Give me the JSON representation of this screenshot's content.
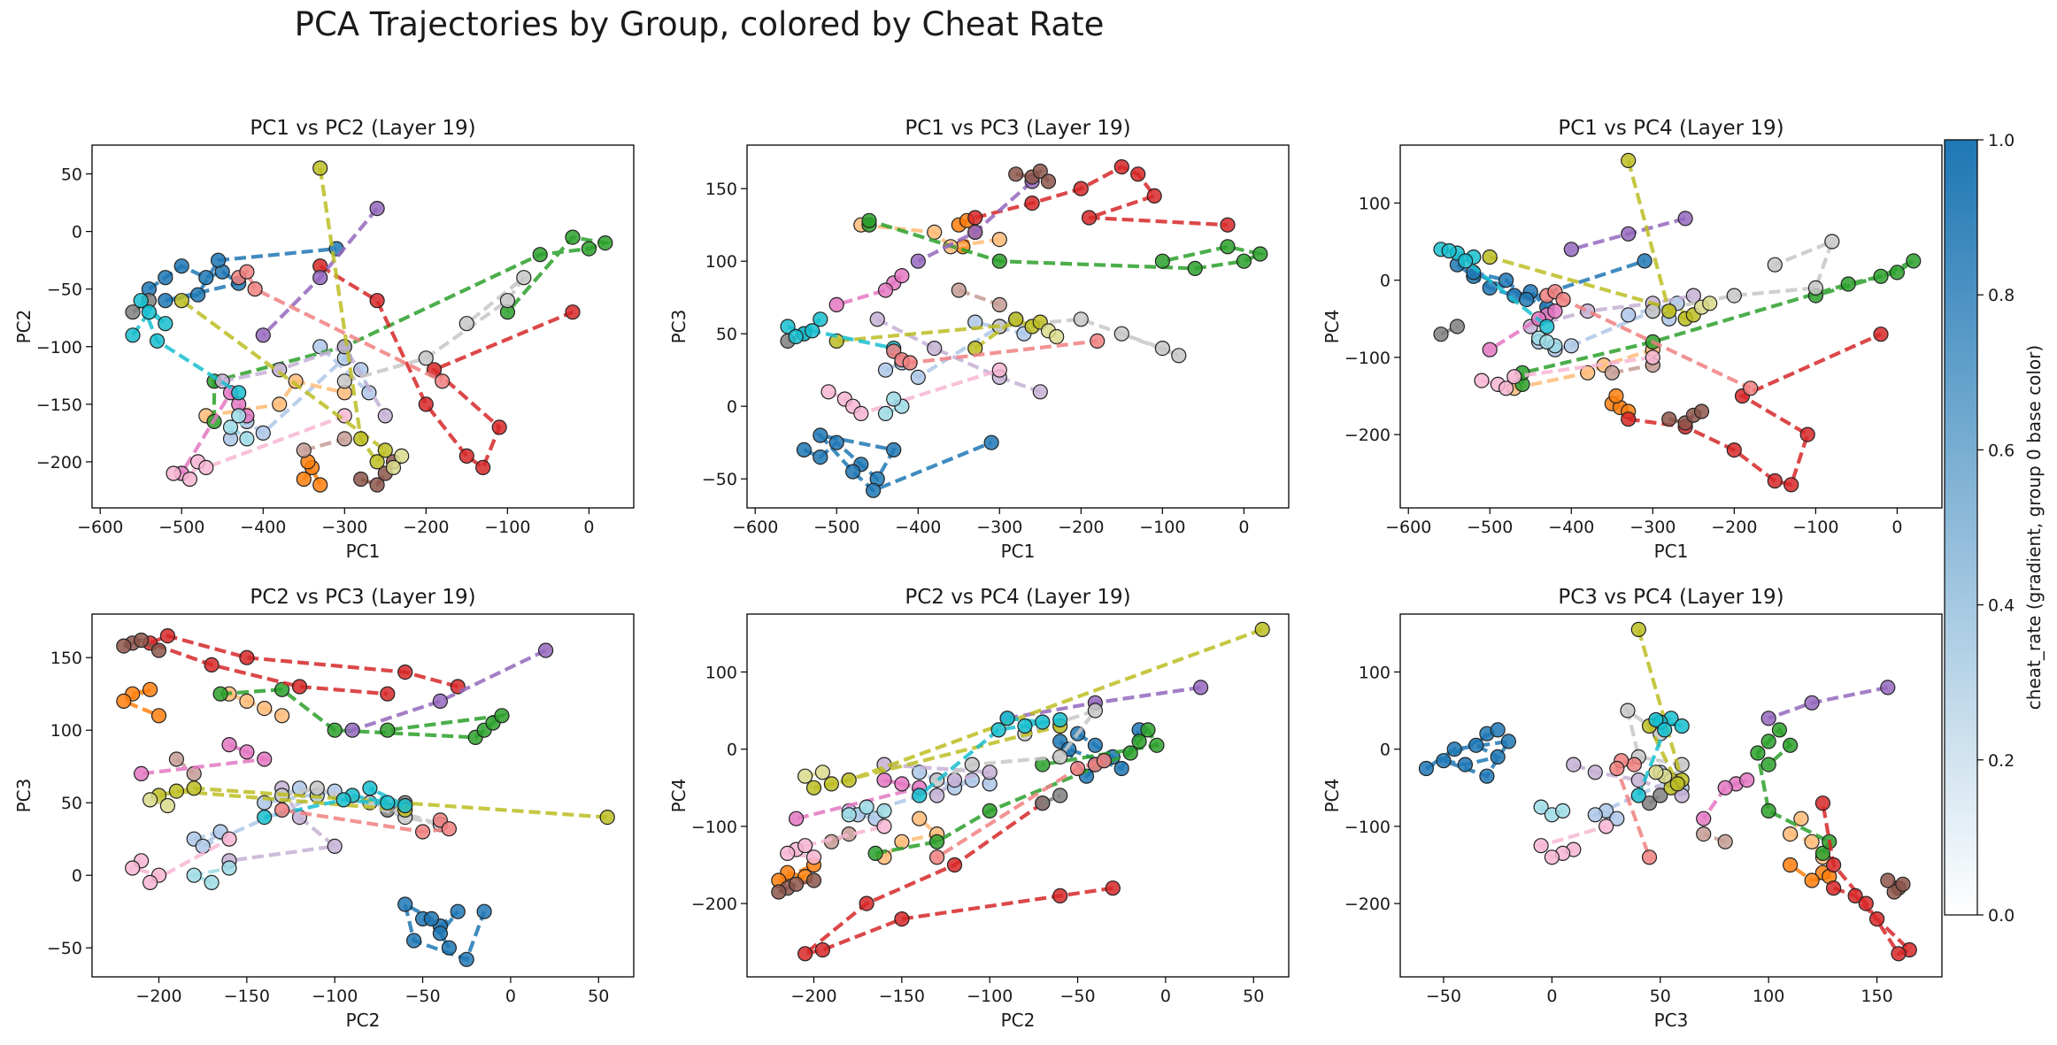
{
  "title": "PCA Trajectories by Group, colored by Cheat Rate",
  "colorbar": {
    "label": "cheat_rate (gradient, group 0 base color)",
    "ticks": [
      "0.0",
      "0.2",
      "0.4",
      "0.6",
      "0.8",
      "1.0"
    ],
    "range": [
      0,
      1
    ],
    "color_low": "#ffffff",
    "color_high": "#1f77b4"
  },
  "chart_data": [
    {
      "type": "scatter",
      "title": "PC1 vs PC2 (Layer 19)",
      "xlabel": "PC1",
      "ylabel": "PC2",
      "xlim": [
        -610,
        55
      ],
      "ylim": [
        -240,
        75
      ],
      "xticks": [
        -600,
        -500,
        -400,
        -300,
        -200,
        -100,
        0
      ],
      "yticks": [
        -200,
        -150,
        -100,
        -50,
        0,
        50
      ],
      "dims": [
        0,
        1
      ]
    },
    {
      "type": "scatter",
      "title": "PC1 vs PC3 (Layer 19)",
      "xlabel": "PC1",
      "ylabel": "PC3",
      "xlim": [
        -610,
        55
      ],
      "ylim": [
        -70,
        180
      ],
      "xticks": [
        -600,
        -500,
        -400,
        -300,
        -200,
        -100,
        0
      ],
      "yticks": [
        -50,
        0,
        50,
        100,
        150
      ],
      "dims": [
        0,
        2
      ]
    },
    {
      "type": "scatter",
      "title": "PC1 vs PC4 (Layer 19)",
      "xlabel": "PC1",
      "ylabel": "PC4",
      "xlim": [
        -610,
        55
      ],
      "ylim": [
        -295,
        175
      ],
      "xticks": [
        -600,
        -500,
        -400,
        -300,
        -200,
        -100,
        0
      ],
      "yticks": [
        -200,
        -100,
        0,
        100
      ],
      "dims": [
        0,
        3
      ]
    },
    {
      "type": "scatter",
      "title": "PC2 vs PC3 (Layer 19)",
      "xlabel": "PC2",
      "ylabel": "PC3",
      "xlim": [
        -238,
        70
      ],
      "ylim": [
        -70,
        180
      ],
      "xticks": [
        -200,
        -150,
        -100,
        -50,
        0,
        50
      ],
      "yticks": [
        -50,
        0,
        50,
        100,
        150
      ],
      "dims": [
        1,
        2
      ]
    },
    {
      "type": "scatter",
      "title": "PC2 vs PC4 (Layer 19)",
      "xlabel": "PC2",
      "ylabel": "PC4",
      "xlim": [
        -238,
        70
      ],
      "ylim": [
        -295,
        175
      ],
      "xticks": [
        -200,
        -150,
        -100,
        -50,
        0,
        50
      ],
      "yticks": [
        -200,
        -100,
        0,
        100
      ],
      "dims": [
        1,
        3
      ]
    },
    {
      "type": "scatter",
      "title": "PC3 vs PC4 (Layer 19)",
      "xlabel": "PC3",
      "ylabel": "PC4",
      "xlim": [
        -70,
        180
      ],
      "ylim": [
        -295,
        175
      ],
      "xticks": [
        -50,
        0,
        50,
        100,
        150
      ],
      "yticks": [
        -200,
        -100,
        0,
        100
      ],
      "dims": [
        2,
        3
      ]
    }
  ],
  "groups": [
    {
      "color": "#1f77b4",
      "points": [
        [
          -540,
          -50,
          -30,
          20
        ],
        [
          -520,
          -40,
          -35,
          5
        ],
        [
          -500,
          -30,
          -25,
          -10
        ],
        [
          -470,
          -40,
          -40,
          -20
        ],
        [
          -450,
          -35,
          -50,
          -15
        ],
        [
          -430,
          -45,
          -30,
          -35
        ],
        [
          -520,
          -60,
          -20,
          10
        ],
        [
          -480,
          -55,
          -45,
          0
        ],
        [
          -455,
          -25,
          -58,
          -25
        ],
        [
          -310,
          -15,
          -25,
          25
        ]
      ]
    },
    {
      "color": "#aec7e8",
      "points": [
        [
          -440,
          -180,
          25,
          -80
        ],
        [
          -420,
          -165,
          30,
          -90
        ],
        [
          -400,
          -175,
          20,
          -85
        ],
        [
          -300,
          -110,
          55,
          -40
        ],
        [
          -280,
          -120,
          60,
          -50
        ],
        [
          -270,
          -140,
          50,
          -30
        ],
        [
          -330,
          -100,
          58,
          -45
        ]
      ]
    },
    {
      "color": "#ff7f0e",
      "points": [
        [
          -350,
          -215,
          125,
          -160
        ],
        [
          -340,
          -205,
          128,
          -165
        ],
        [
          -330,
          -220,
          120,
          -170
        ],
        [
          -345,
          -200,
          110,
          -150
        ]
      ]
    },
    {
      "color": "#ffbb78",
      "points": [
        [
          -470,
          -160,
          125,
          -140
        ],
        [
          -380,
          -150,
          120,
          -120
        ],
        [
          -360,
          -130,
          110,
          -110
        ],
        [
          -300,
          -140,
          115,
          -90
        ]
      ]
    },
    {
      "color": "#2ca02c",
      "points": [
        [
          -460,
          -165,
          125,
          -135
        ],
        [
          -460,
          -130,
          128,
          -120
        ],
        [
          -300,
          -100,
          100,
          -80
        ],
        [
          -60,
          -20,
          95,
          -5
        ],
        [
          0,
          -15,
          100,
          10
        ],
        [
          20,
          -10,
          105,
          25
        ],
        [
          -20,
          -5,
          110,
          5
        ],
        [
          -100,
          -70,
          100,
          -20
        ]
      ]
    },
    {
      "color": "#d62728",
      "points": [
        [
          -330,
          -30,
          130,
          -180
        ],
        [
          -260,
          -60,
          140,
          -190
        ],
        [
          -200,
          -150,
          150,
          -220
        ],
        [
          -150,
          -195,
          165,
          -260
        ],
        [
          -130,
          -205,
          160,
          -265
        ],
        [
          -110,
          -170,
          145,
          -200
        ],
        [
          -190,
          -120,
          130,
          -150
        ],
        [
          -20,
          -70,
          125,
          -70
        ]
      ]
    },
    {
      "color": "#9467bd",
      "points": [
        [
          -260,
          20,
          155,
          80
        ],
        [
          -330,
          -40,
          120,
          60
        ],
        [
          -400,
          -90,
          100,
          40
        ]
      ]
    },
    {
      "color": "#c5b0d5",
      "points": [
        [
          -450,
          -130,
          60,
          -60
        ],
        [
          -380,
          -120,
          40,
          -40
        ],
        [
          -300,
          -100,
          20,
          -30
        ],
        [
          -250,
          -160,
          10,
          -20
        ]
      ]
    },
    {
      "color": "#8c564b",
      "points": [
        [
          -280,
          -215,
          160,
          -180
        ],
        [
          -260,
          -220,
          158,
          -185
        ],
        [
          -250,
          -210,
          162,
          -175
        ],
        [
          -240,
          -200,
          155,
          -170
        ]
      ]
    },
    {
      "color": "#c49c94",
      "points": [
        [
          -350,
          -190,
          80,
          -120
        ],
        [
          -300,
          -180,
          70,
          -110
        ]
      ]
    },
    {
      "color": "#e377c2",
      "points": [
        [
          -430,
          -150,
          85,
          -45
        ],
        [
          -420,
          -160,
          90,
          -40
        ],
        [
          -440,
          -140,
          80,
          -50
        ],
        [
          -500,
          -210,
          70,
          -90
        ]
      ]
    },
    {
      "color": "#f7b6d2",
      "points": [
        [
          -510,
          -210,
          10,
          -130
        ],
        [
          -490,
          -215,
          5,
          -135
        ],
        [
          -480,
          -200,
          0,
          -140
        ],
        [
          -470,
          -205,
          -5,
          -125
        ],
        [
          -300,
          -160,
          25,
          -100
        ]
      ]
    },
    {
      "color": "#7f7f7f",
      "points": [
        [
          -560,
          -70,
          45,
          -70
        ],
        [
          -540,
          -60,
          50,
          -60
        ]
      ]
    },
    {
      "color": "#c7c7c7",
      "points": [
        [
          -300,
          -130,
          55,
          -40
        ],
        [
          -200,
          -110,
          60,
          -20
        ],
        [
          -100,
          -60,
          40,
          -10
        ],
        [
          -80,
          -40,
          35,
          50
        ],
        [
          -150,
          -80,
          50,
          20
        ]
      ]
    },
    {
      "color": "#bcbd22",
      "points": [
        [
          -330,
          55,
          40,
          155
        ],
        [
          -280,
          -180,
          60,
          -40
        ],
        [
          -260,
          -200,
          55,
          -50
        ],
        [
          -250,
          -190,
          58,
          -45
        ],
        [
          -500,
          -60,
          45,
          30
        ]
      ]
    },
    {
      "color": "#dbdb8d",
      "points": [
        [
          -240,
          -205,
          52,
          -35
        ],
        [
          -230,
          -195,
          48,
          -30
        ]
      ]
    },
    {
      "color": "#17becf",
      "points": [
        [
          -560,
          -90,
          55,
          40
        ],
        [
          -540,
          -70,
          50,
          35
        ],
        [
          -520,
          -80,
          60,
          30
        ],
        [
          -550,
          -60,
          48,
          38
        ],
        [
          -530,
          -95,
          52,
          25
        ],
        [
          -430,
          -140,
          40,
          -60
        ]
      ]
    },
    {
      "color": "#9edae5",
      "points": [
        [
          -440,
          -170,
          -5,
          -75
        ],
        [
          -420,
          -180,
          0,
          -85
        ],
        [
          -430,
          -160,
          5,
          -80
        ]
      ]
    },
    {
      "color": "#f08080",
      "points": [
        [
          -430,
          -40,
          38,
          -20
        ],
        [
          -420,
          -35,
          32,
          -15
        ],
        [
          -410,
          -50,
          30,
          -25
        ],
        [
          -180,
          -130,
          45,
          -140
        ]
      ]
    }
  ]
}
